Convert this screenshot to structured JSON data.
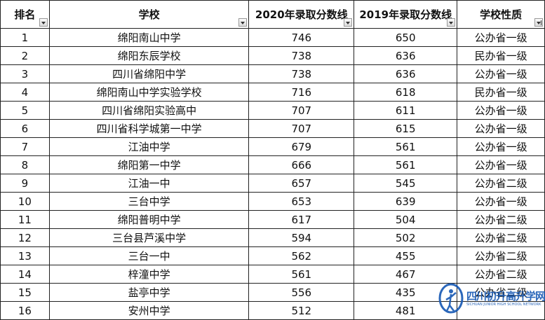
{
  "table": {
    "header": [
      "排名",
      "学校",
      "2020年录取分数线",
      "2019年录取分数线",
      "学校性质"
    ],
    "rows": [
      [
        "1",
        "绵阳南山中学",
        "746",
        "650",
        "公办省一级"
      ],
      [
        "2",
        "绵阳东辰学校",
        "738",
        "636",
        "民办省一级"
      ],
      [
        "3",
        "四川省绵阳中学",
        "738",
        "636",
        "公办省一级"
      ],
      [
        "4",
        "绵阳南山中学实验学校",
        "716",
        "618",
        "民办省一级"
      ],
      [
        "5",
        "四川省绵阳实验高中",
        "707",
        "611",
        "公办省一级"
      ],
      [
        "6",
        "四川省科学城第一中学",
        "707",
        "615",
        "公办省一级"
      ],
      [
        "7",
        "江油中学",
        "679",
        "561",
        "公办省一级"
      ],
      [
        "8",
        "绵阳第一中学",
        "666",
        "561",
        "公办省一级"
      ],
      [
        "9",
        "江油一中",
        "657",
        "545",
        "公办省二级"
      ],
      [
        "10",
        "三台中学",
        "653",
        "639",
        "公办省一级"
      ],
      [
        "11",
        "绵阳普明中学",
        "617",
        "504",
        "公办省二级"
      ],
      [
        "12",
        "三台县芦溪中学",
        "594",
        "502",
        "公办省二级"
      ],
      [
        "13",
        "三台一中",
        "562",
        "455",
        "公办省二级"
      ],
      [
        "14",
        "梓潼中学",
        "561",
        "467",
        "公办省二级"
      ],
      [
        "15",
        "盐亭中学",
        "556",
        "435",
        "公办省二级"
      ],
      [
        "16",
        "安州中学",
        "512",
        "481",
        null
      ]
    ]
  },
  "watermark": {
    "title": "四川初升高升学网",
    "subtitle": "SICHUAN JUNIOR HIGH SCHOOL NETWORK"
  }
}
